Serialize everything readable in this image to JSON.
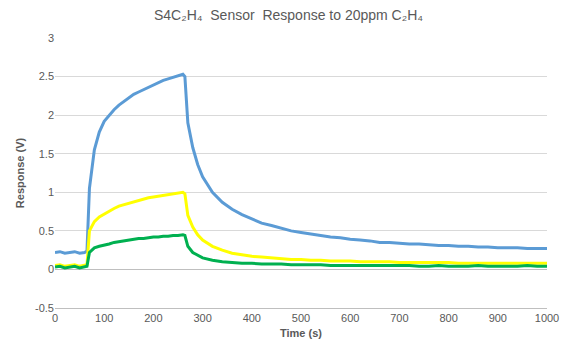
{
  "chart_data": {
    "type": "line",
    "title": "S4C₂H₄  Sensor  Response to 20ppm C₂H₄",
    "x_label": "Time (s)",
    "y_label": "Response (V)",
    "x": [
      0,
      10,
      20,
      30,
      40,
      50,
      60,
      65,
      70,
      80,
      90,
      100,
      110,
      120,
      130,
      140,
      150,
      160,
      170,
      180,
      190,
      200,
      210,
      220,
      230,
      240,
      250,
      260,
      264,
      270,
      280,
      290,
      300,
      320,
      340,
      360,
      380,
      400,
      420,
      440,
      460,
      480,
      500,
      520,
      540,
      560,
      580,
      600,
      620,
      640,
      660,
      680,
      700,
      720,
      740,
      760,
      780,
      800,
      820,
      840,
      860,
      880,
      900,
      920,
      940,
      960,
      980,
      1000
    ],
    "series": [
      {
        "color": "#5b9bd5",
        "values": [
          0.22,
          0.23,
          0.21,
          0.22,
          0.23,
          0.21,
          0.22,
          0.24,
          1.05,
          1.55,
          1.78,
          1.92,
          2.0,
          2.07,
          2.13,
          2.18,
          2.22,
          2.27,
          2.3,
          2.33,
          2.37,
          2.4,
          2.42,
          2.45,
          2.47,
          2.49,
          2.51,
          2.53,
          2.5,
          1.9,
          1.58,
          1.36,
          1.2,
          1.0,
          0.87,
          0.78,
          0.71,
          0.65,
          0.6,
          0.57,
          0.53,
          0.5,
          0.48,
          0.46,
          0.44,
          0.42,
          0.41,
          0.39,
          0.38,
          0.37,
          0.35,
          0.35,
          0.34,
          0.33,
          0.33,
          0.32,
          0.31,
          0.31,
          0.3,
          0.3,
          0.29,
          0.29,
          0.28,
          0.28,
          0.28,
          0.27,
          0.27,
          0.27
        ]
      },
      {
        "color": "#ffff00",
        "values": [
          0.05,
          0.06,
          0.04,
          0.05,
          0.06,
          0.04,
          0.05,
          0.06,
          0.5,
          0.62,
          0.68,
          0.72,
          0.76,
          0.79,
          0.82,
          0.84,
          0.86,
          0.88,
          0.9,
          0.91,
          0.93,
          0.94,
          0.95,
          0.96,
          0.97,
          0.98,
          0.99,
          1.0,
          0.98,
          0.7,
          0.55,
          0.45,
          0.38,
          0.3,
          0.25,
          0.21,
          0.19,
          0.17,
          0.16,
          0.15,
          0.14,
          0.13,
          0.13,
          0.12,
          0.12,
          0.11,
          0.11,
          0.11,
          0.1,
          0.1,
          0.1,
          0.1,
          0.09,
          0.09,
          0.09,
          0.09,
          0.09,
          0.09,
          0.08,
          0.08,
          0.08,
          0.08,
          0.08,
          0.08,
          0.08,
          0.08,
          0.08,
          0.08
        ]
      },
      {
        "color": "#00b050",
        "values": [
          0.03,
          0.04,
          0.02,
          0.03,
          0.04,
          0.02,
          0.03,
          0.04,
          0.22,
          0.28,
          0.3,
          0.32,
          0.33,
          0.35,
          0.36,
          0.37,
          0.38,
          0.39,
          0.4,
          0.4,
          0.41,
          0.42,
          0.42,
          0.43,
          0.43,
          0.44,
          0.44,
          0.45,
          0.44,
          0.3,
          0.22,
          0.18,
          0.15,
          0.12,
          0.1,
          0.09,
          0.08,
          0.08,
          0.07,
          0.07,
          0.07,
          0.06,
          0.06,
          0.06,
          0.06,
          0.05,
          0.05,
          0.05,
          0.05,
          0.05,
          0.05,
          0.05,
          0.05,
          0.05,
          0.04,
          0.04,
          0.05,
          0.04,
          0.04,
          0.04,
          0.05,
          0.04,
          0.04,
          0.04,
          0.04,
          0.05,
          0.04,
          0.04
        ]
      }
    ],
    "xlim": [
      0,
      1000
    ],
    "ylim": [
      -0.5,
      3
    ],
    "xticks": [
      0,
      100,
      200,
      300,
      400,
      500,
      600,
      700,
      800,
      900,
      1000
    ],
    "yticks": [
      -0.5,
      0,
      0.5,
      1,
      1.5,
      2,
      2.5,
      3
    ],
    "grid": true
  }
}
